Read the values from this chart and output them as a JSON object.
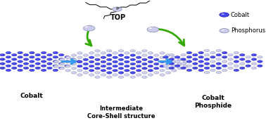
{
  "bg_color": "#ffffff",
  "cobalt_color": "#4444ee",
  "cobalt_edge": "#2222aa",
  "cobalt_highlight": "#8888ff",
  "phosphorus_color": "#ccccee",
  "phosphorus_edge": "#8888aa",
  "phosphorus_highlight": "#eeeeff",
  "arrow_color": "#3399ee",
  "green_arrow_color": "#33aa00",
  "c1x": 0.12,
  "c1y": 0.5,
  "c2x": 0.455,
  "c2y": 0.48,
  "c3x": 0.8,
  "c3y": 0.5,
  "r1": 0.088,
  "r2": 0.125,
  "r3": 0.095,
  "atom_r": 0.01,
  "label1": "Cobalt",
  "label2": "Intermediate\nCore-Shell structure",
  "label3": "Cobalt\nPhosphide",
  "legend_cobalt": "Cobalt",
  "legend_phosphorus": "Phosphorus",
  "top_label": "TOP"
}
